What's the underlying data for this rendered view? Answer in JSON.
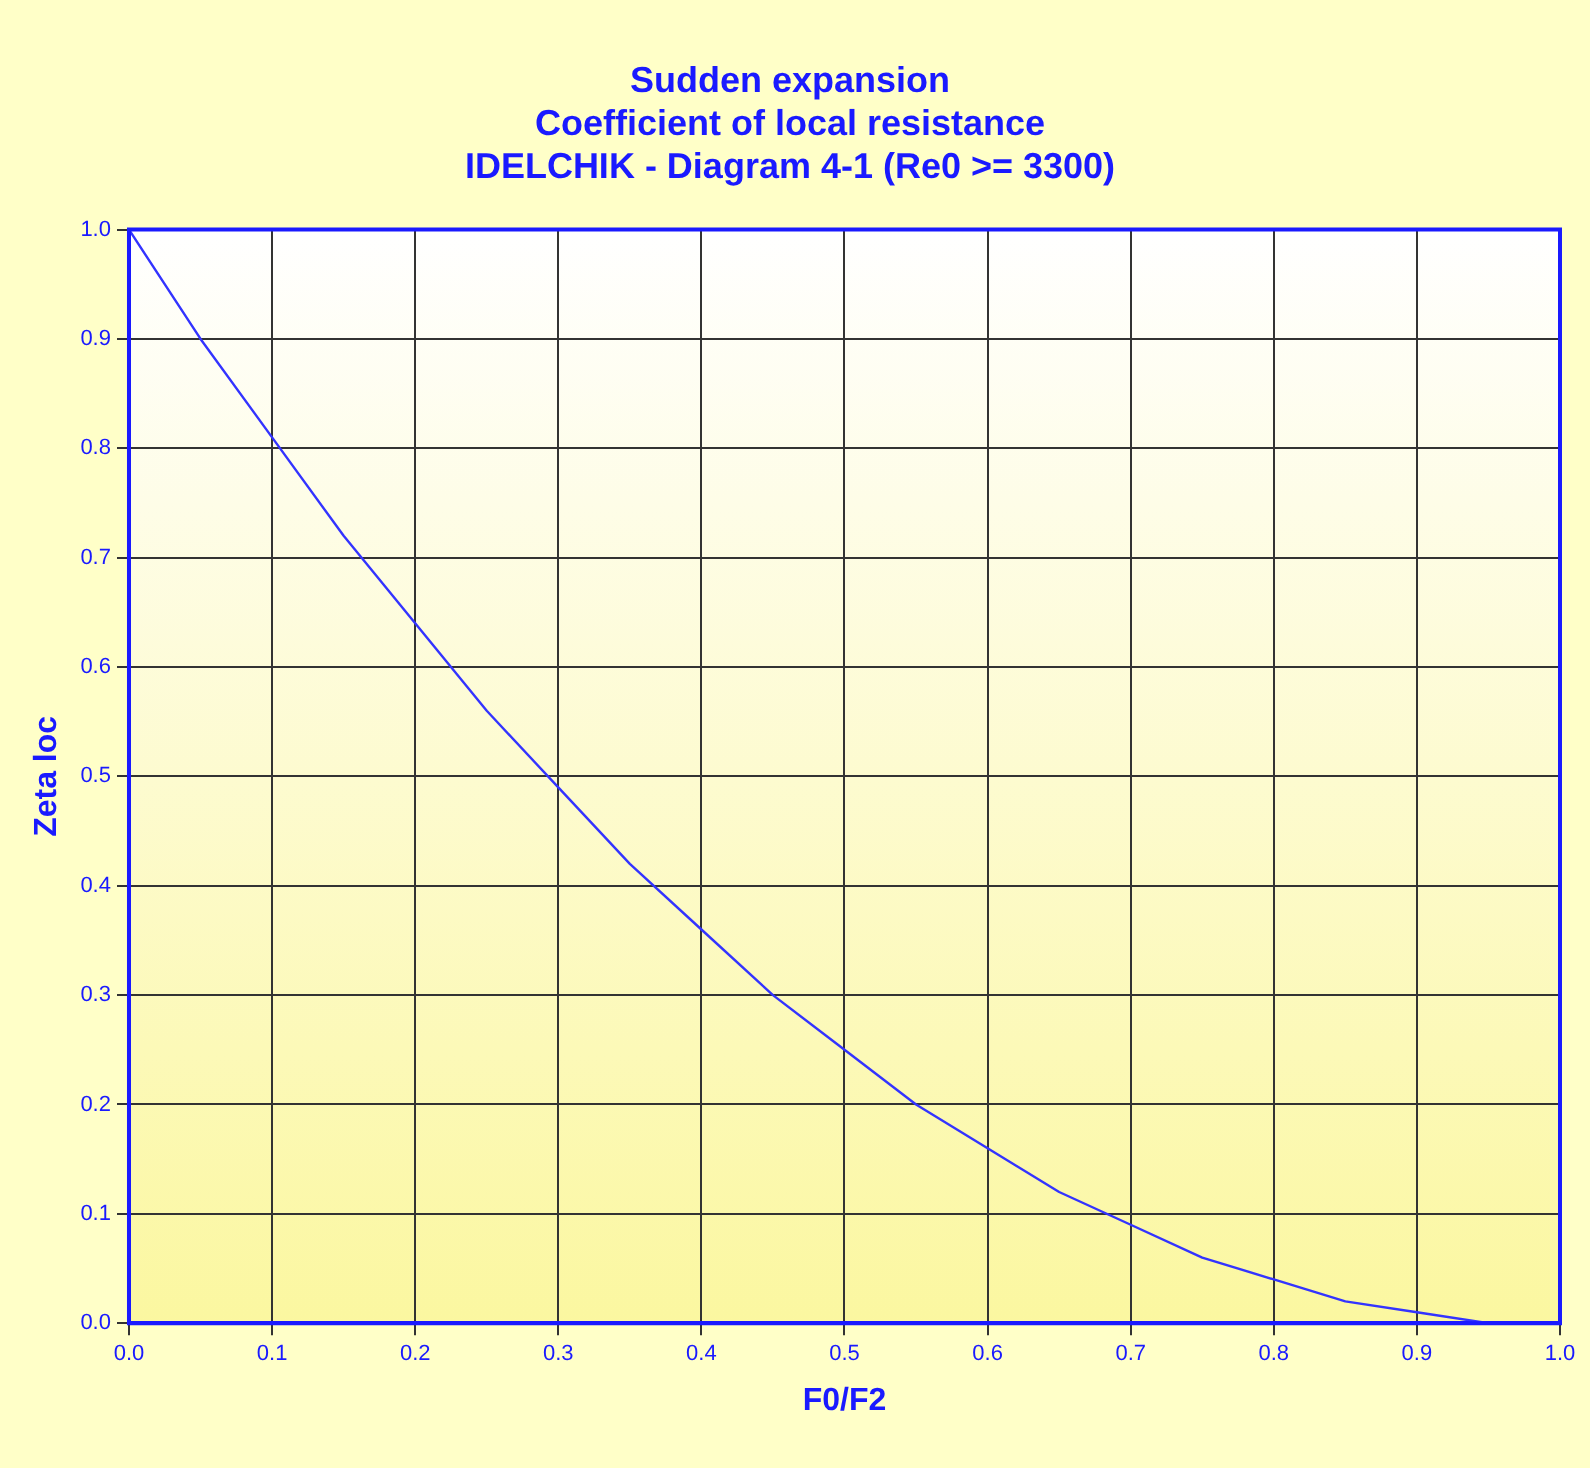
{
  "chart_data": {
    "type": "line",
    "title": "Sudden expansion\nCoefficient of local resistance\nIDELCHIK - Diagram 4-1 (Re0 >= 3300)",
    "xlabel": "F0/F2",
    "ylabel": "Zeta loc",
    "x": [
      0,
      0.05,
      0.1,
      0.15,
      0.2,
      0.25,
      0.3,
      0.35,
      0.4,
      0.45,
      0.5,
      0.55,
      0.6,
      0.65,
      0.7,
      0.75,
      0.8,
      0.85,
      0.9,
      0.95,
      0.98
    ],
    "series": [
      {
        "color": "#3333ff",
        "values": [
          1,
          0.9,
          0.81,
          0.72,
          0.64,
          0.56,
          0.49,
          0.42,
          0.36,
          0.3,
          0.25,
          0.2,
          0.16,
          0.12,
          0.09,
          0.06,
          0.04,
          0.02,
          0.01,
          0.0,
          0.0
        ]
      }
    ],
    "xlim": [
      0,
      1
    ],
    "xticks": [
      {
        "value": 0,
        "label": "0.0"
      },
      {
        "value": 0.1,
        "label": "0.1"
      },
      {
        "value": 0.2,
        "label": "0.2"
      },
      {
        "value": 0.3,
        "label": "0.3"
      },
      {
        "value": 0.4,
        "label": "0.4"
      },
      {
        "value": 0.5,
        "label": "0.5"
      },
      {
        "value": 0.6,
        "label": "0.6"
      },
      {
        "value": 0.7,
        "label": "0.7"
      },
      {
        "value": 0.8,
        "label": "0.8"
      },
      {
        "value": 0.9,
        "label": "0.9"
      },
      {
        "value": 1,
        "label": "1.0"
      }
    ],
    "ylim": [
      0,
      1
    ],
    "yticks": [
      {
        "value": 0,
        "label": "0.0"
      },
      {
        "value": 0.1,
        "label": "0.1"
      },
      {
        "value": 0.2,
        "label": "0.2"
      },
      {
        "value": 0.3,
        "label": "0.3"
      },
      {
        "value": 0.4,
        "label": "0.4"
      },
      {
        "value": 0.5,
        "label": "0.5"
      },
      {
        "value": 0.6,
        "label": "0.6"
      },
      {
        "value": 0.7,
        "label": "0.7"
      },
      {
        "value": 0.8,
        "label": "0.8"
      },
      {
        "value": 0.9,
        "label": "0.9"
      },
      {
        "value": 1,
        "label": "1.0"
      }
    ],
    "grid": true,
    "legend": false,
    "marker": "none",
    "line_style": "solid"
  }
}
